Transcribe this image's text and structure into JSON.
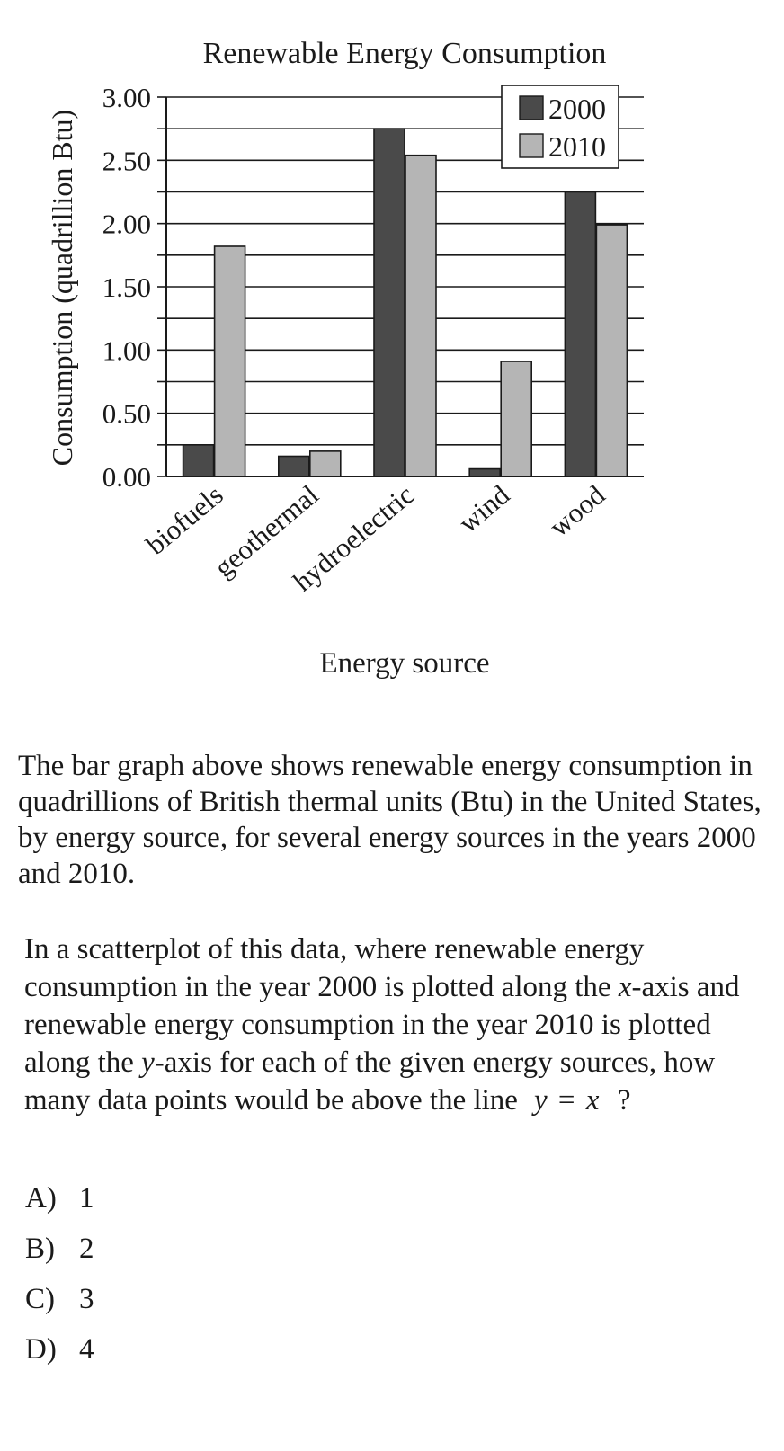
{
  "chart_data": {
    "type": "bar",
    "title": "Renewable Energy Consumption",
    "xlabel": "Energy source",
    "ylabel": "Consumption (quadrillion Btu)",
    "categories": [
      "biofuels",
      "geothermal",
      "hydroelectric",
      "wind",
      "wood"
    ],
    "series": [
      {
        "name": "2000",
        "values": [
          0.25,
          0.16,
          2.75,
          0.06,
          2.25
        ],
        "color": "#4a4a4a"
      },
      {
        "name": "2010",
        "values": [
          1.82,
          0.2,
          2.54,
          0.91,
          1.99
        ],
        "color": "#b5b5b5"
      }
    ],
    "ylim": [
      0,
      3.0
    ],
    "yticks": [
      "0.00",
      "0.50",
      "1.00",
      "1.50",
      "2.00",
      "2.50",
      "3.00"
    ],
    "grid": true,
    "legend_position": "top-right"
  },
  "intro_text": "The bar graph above shows renewable energy consumption in quadrillions of British thermal units (Btu) in the United States, by energy source, for several energy sources in the years 2000 and 2010.",
  "question": {
    "part1": "In a scatterplot of this data, where renewable energy consumption in the year 2000 is plotted along the ",
    "x_var": "x",
    "part2": "-axis and renewable energy consumption in the year 2010 is plotted along the ",
    "y_var": "y",
    "part3": "-axis for each of the given energy sources, how many data points would be above the line",
    "eq_lhs": "y",
    "eq_op": "=",
    "eq_rhs": "x",
    "eq_end": "?"
  },
  "choices": [
    {
      "letter": "A)",
      "value": "1"
    },
    {
      "letter": "B)",
      "value": "2"
    },
    {
      "letter": "C)",
      "value": "3"
    },
    {
      "letter": "D)",
      "value": "4"
    }
  ]
}
